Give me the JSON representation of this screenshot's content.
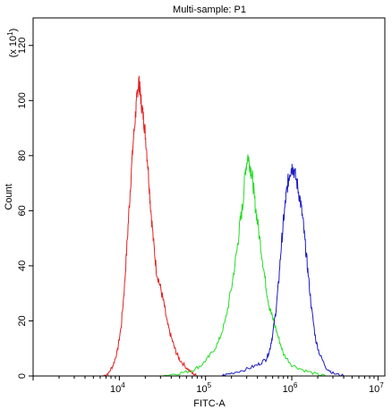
{
  "chart_data": {
    "type": "line",
    "title": "Multi-sample: P1",
    "xlabel": "FITC-A",
    "ylabel": "Count",
    "y_multiplier_label": "(x 10",
    "y_multiplier_exp": "1",
    "y_multiplier_close": ")",
    "x_scale": "log",
    "xlim": [
      1000,
      12000000
    ],
    "ylim": [
      0,
      1300
    ],
    "grid": false,
    "legend": "none",
    "x_ticks": [
      {
        "value": 10000,
        "base": "10",
        "exp": "4"
      },
      {
        "value": 100000,
        "base": "10",
        "exp": "5"
      },
      {
        "value": 1000000,
        "base": "10",
        "exp": "6"
      },
      {
        "value": 10000000,
        "base": "10",
        "exp": "7"
      }
    ],
    "y_ticks": [
      {
        "value": 0,
        "label": "0"
      },
      {
        "value": 200,
        "label": "20"
      },
      {
        "value": 400,
        "label": "40"
      },
      {
        "value": 600,
        "label": "60"
      },
      {
        "value": 800,
        "label": "80"
      },
      {
        "value": 1000,
        "label": "100"
      },
      {
        "value": 1200,
        "label": "120"
      }
    ],
    "series": [
      {
        "color": "#e32020",
        "points": [
          [
            6500,
            0
          ],
          [
            7500,
            10
          ],
          [
            8500,
            40
          ],
          [
            9500,
            90
          ],
          [
            10500,
            180
          ],
          [
            11500,
            330
          ],
          [
            12500,
            520
          ],
          [
            13500,
            700
          ],
          [
            14500,
            850
          ],
          [
            15500,
            960
          ],
          [
            16200,
            1030
          ],
          [
            16800,
            1070
          ],
          [
            17300,
            1040
          ],
          [
            18000,
            990
          ],
          [
            19000,
            940
          ],
          [
            20000,
            880
          ],
          [
            21500,
            760
          ],
          [
            23000,
            620
          ],
          [
            25000,
            480
          ],
          [
            27000,
            380
          ],
          [
            30000,
            320
          ],
          [
            33000,
            260
          ],
          [
            36000,
            190
          ],
          [
            40000,
            140
          ],
          [
            45000,
            90
          ],
          [
            50000,
            60
          ],
          [
            60000,
            30
          ],
          [
            70000,
            10
          ],
          [
            80000,
            0
          ]
        ]
      },
      {
        "color": "#22dd22",
        "points": [
          [
            30000,
            0
          ],
          [
            50000,
            10
          ],
          [
            70000,
            20
          ],
          [
            90000,
            40
          ],
          [
            110000,
            70
          ],
          [
            140000,
            120
          ],
          [
            170000,
            200
          ],
          [
            200000,
            320
          ],
          [
            230000,
            450
          ],
          [
            250000,
            550
          ],
          [
            270000,
            620
          ],
          [
            290000,
            750
          ],
          [
            310000,
            800
          ],
          [
            330000,
            760
          ],
          [
            350000,
            720
          ],
          [
            370000,
            640
          ],
          [
            400000,
            560
          ],
          [
            450000,
            440
          ],
          [
            500000,
            330
          ],
          [
            550000,
            250
          ],
          [
            600000,
            210
          ],
          [
            700000,
            140
          ],
          [
            800000,
            80
          ],
          [
            1000000,
            40
          ],
          [
            1400000,
            20
          ],
          [
            2000000,
            5
          ],
          [
            2500000,
            0
          ]
        ]
      },
      {
        "color": "#1c1cc8",
        "points": [
          [
            150000,
            0
          ],
          [
            200000,
            10
          ],
          [
            300000,
            25
          ],
          [
            400000,
            40
          ],
          [
            500000,
            60
          ],
          [
            550000,
            90
          ],
          [
            600000,
            150
          ],
          [
            650000,
            230
          ],
          [
            700000,
            330
          ],
          [
            750000,
            460
          ],
          [
            800000,
            560
          ],
          [
            850000,
            640
          ],
          [
            900000,
            700
          ],
          [
            950000,
            740
          ],
          [
            1000000,
            760
          ],
          [
            1050000,
            750
          ],
          [
            1150000,
            700
          ],
          [
            1250000,
            640
          ],
          [
            1350000,
            560
          ],
          [
            1450000,
            460
          ],
          [
            1550000,
            370
          ],
          [
            1700000,
            240
          ],
          [
            1900000,
            130
          ],
          [
            2100000,
            80
          ],
          [
            2500000,
            30
          ],
          [
            3000000,
            10
          ],
          [
            4000000,
            0
          ]
        ]
      }
    ]
  }
}
